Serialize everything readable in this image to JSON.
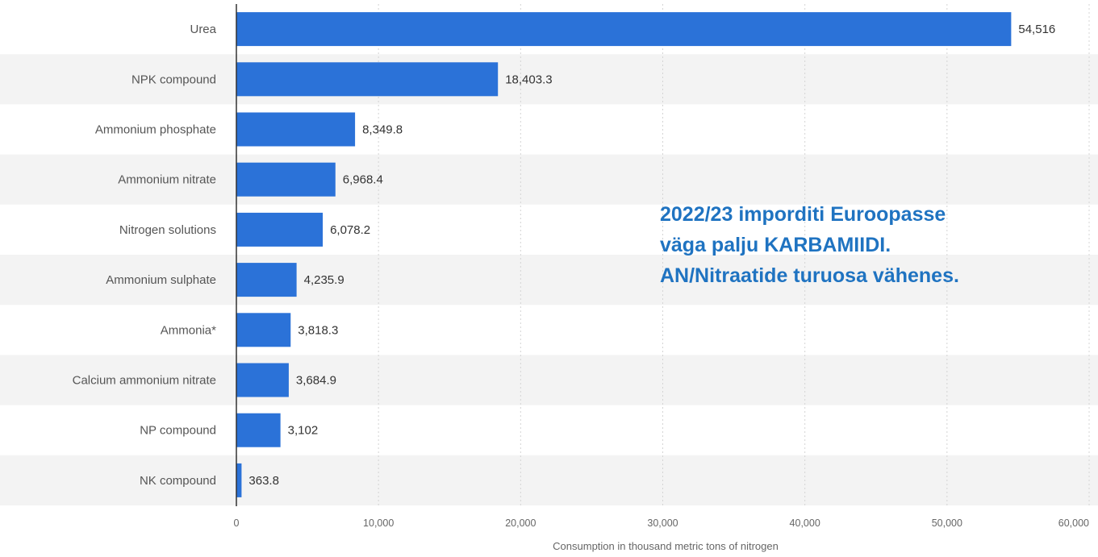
{
  "chart_data": {
    "type": "bar",
    "orientation": "horizontal",
    "categories": [
      "Urea",
      "NPK compound",
      "Ammonium phosphate",
      "Ammonium nitrate",
      "Nitrogen solutions",
      "Ammonium sulphate",
      "Ammonia*",
      "Calcium ammonium nitrate",
      "NP compound",
      "NK compound"
    ],
    "values": [
      54516,
      18403.3,
      8349.8,
      6968.4,
      6078.2,
      4235.9,
      3818.3,
      3684.9,
      3102,
      363.8
    ],
    "value_labels": [
      "54,516",
      "18,403.3",
      "8,349.8",
      "6,968.4",
      "6,078.2",
      "4,235.9",
      "3,818.3",
      "3,684.9",
      "3,102",
      "363.8"
    ],
    "xlabel": "Consumption in thousand metric tons of nitrogen",
    "xlim": [
      0,
      60000
    ],
    "xticks": [
      0,
      10000,
      20000,
      30000,
      40000,
      50000,
      60000
    ],
    "xtick_labels": [
      "0",
      "10,000",
      "20,000",
      "30,000",
      "40,000",
      "50,000",
      "60,000"
    ],
    "grid": true,
    "bar_color": "#2b72d8",
    "stripe_color": "#f3f3f3"
  },
  "annotation": {
    "lines": [
      "2022/23 imporditi Euroopasse",
      "väga palju KARBAMIIDI.",
      "AN/Nitraatide turuosa vähenes."
    ],
    "color": "#1f73c1"
  }
}
